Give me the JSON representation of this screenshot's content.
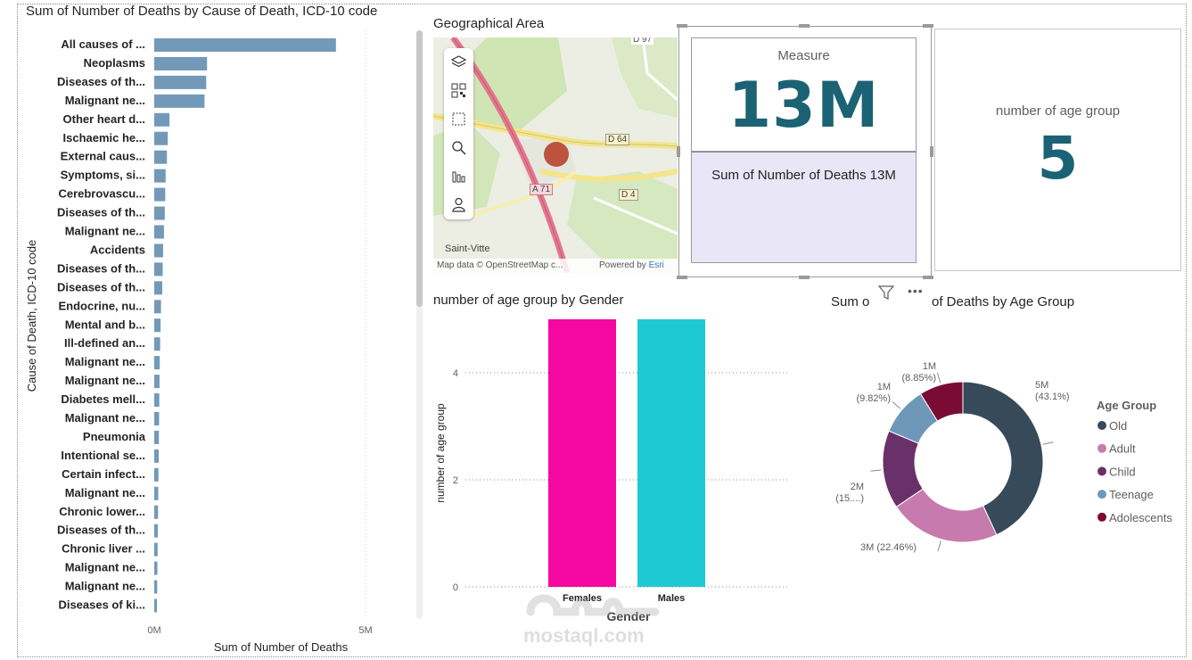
{
  "bar_chart": {
    "title": "Sum of Number of Deaths by Cause of Death, ICD-10 code",
    "chart_data": {
      "type": "bar",
      "orientation": "horizontal",
      "title": "Sum of Number of Deaths by Cause of Death, ICD-10 code",
      "xlabel": "Sum of Number of Deaths",
      "ylabel": "Cause of Death, ICD-10 code",
      "xlim": [
        0,
        5000000
      ],
      "x_ticks": [
        "0M",
        "5M"
      ],
      "color": "#7299b8",
      "categories": [
        "All causes of ...",
        "Neoplasms",
        "Diseases of th...",
        "Malignant ne...",
        "Other heart d...",
        "Ischaemic he...",
        "External caus...",
        "Symptoms, si...",
        "Cerebrovascu...",
        "Diseases of th...",
        "Malignant ne...",
        "Accidents",
        "Diseases of th...",
        "Diseases of th...",
        "Endocrine, nu...",
        "Mental and b...",
        "Ill-defined an...",
        "Malignant ne...",
        "Malignant ne...",
        "Diabetes mell...",
        "Malignant ne...",
        "Pneumonia",
        "Intentional se...",
        "Certain infect...",
        "Malignant ne...",
        "Chronic lower...",
        "Diseases of th...",
        "Chronic liver ...",
        "Malignant ne...",
        "Malignant ne...",
        "Diseases of ki..."
      ],
      "values": [
        4300000,
        1250000,
        1230000,
        1190000,
        360000,
        320000,
        300000,
        270000,
        260000,
        250000,
        230000,
        210000,
        200000,
        190000,
        160000,
        150000,
        140000,
        130000,
        125000,
        120000,
        115000,
        110000,
        105000,
        100000,
        95000,
        90000,
        85000,
        80000,
        75000,
        70000,
        65000
      ]
    }
  },
  "map": {
    "title": "Geographical Area",
    "labels": {
      "d97": "D 97",
      "d64": "D 64",
      "a71": "A 71",
      "d4": "D 4",
      "saint_vitte": "Saint-Vitte"
    },
    "attribution": "Map data © OpenStreetMap c...",
    "powered_by": "Powered by",
    "esri": "Esri",
    "bubble_color": "#b8412c"
  },
  "card_measure": {
    "label": "Measure",
    "value": "13M",
    "detail": "Sum of Number of Deaths 13M"
  },
  "card_age": {
    "label": "number of age group",
    "value": "5"
  },
  "gender_chart": {
    "title": "number of age group by Gender",
    "chart_data": {
      "type": "bar",
      "title": "number of age group by Gender",
      "xlabel": "Gender",
      "ylabel": "number of age group",
      "categories": [
        "Females",
        "Males"
      ],
      "values": [
        5,
        5
      ],
      "colors": [
        "#f507a2",
        "#1fc9d4"
      ],
      "ylim": [
        0,
        5
      ],
      "y_ticks": [
        "0",
        "2",
        "4"
      ]
    }
  },
  "donut_chart": {
    "title_left": "Sum o",
    "title_right": "of Deaths by Age Group",
    "legend_title": "Age Group",
    "chart_data": {
      "type": "pie",
      "subtype": "donut",
      "title": "Sum of Number of Deaths by Age Group",
      "categories": [
        "Old",
        "Adult",
        "Child",
        "Teenage",
        "Adolescents"
      ],
      "values": [
        43.1,
        22.46,
        15.77,
        9.82,
        8.85
      ],
      "value_labels": [
        "5M",
        "3M",
        "2M",
        "1M",
        "1M"
      ],
      "percent_labels": [
        "(43.1%)",
        "(22.46%)",
        "(15....)",
        "(9.82%)",
        "(8.85%)"
      ],
      "colors": [
        "#374a5a",
        "#c77aad",
        "#6a3069",
        "#6e97b8",
        "#7a0b32"
      ],
      "legend_placement": "right"
    }
  },
  "watermark": {
    "text": "mostaql.com"
  }
}
